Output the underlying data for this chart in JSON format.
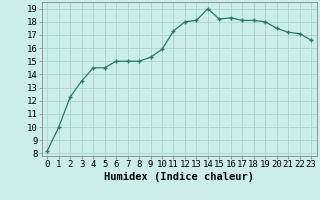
{
  "x": [
    0,
    1,
    2,
    3,
    4,
    5,
    6,
    7,
    8,
    9,
    10,
    11,
    12,
    13,
    14,
    15,
    16,
    17,
    18,
    19,
    20,
    21,
    22,
    23
  ],
  "y": [
    8.2,
    10.0,
    12.3,
    13.5,
    14.5,
    14.5,
    15.0,
    15.0,
    15.0,
    15.3,
    15.9,
    17.3,
    18.0,
    18.1,
    19.0,
    18.2,
    18.3,
    18.1,
    18.1,
    18.0,
    17.5,
    17.2,
    17.1,
    16.6
  ],
  "line_color": "#2a7a6a",
  "marker": "+",
  "marker_size": 3.5,
  "bg_color": "#cceee8",
  "grid_color": "#aad4cc",
  "xlabel": "Humidex (Indice chaleur)",
  "ylabel_ticks": [
    8,
    9,
    10,
    11,
    12,
    13,
    14,
    15,
    16,
    17,
    18,
    19
  ],
  "xlim": [
    -0.5,
    23.5
  ],
  "ylim": [
    7.8,
    19.5
  ],
  "xticks": [
    0,
    1,
    2,
    3,
    4,
    5,
    6,
    7,
    8,
    9,
    10,
    11,
    12,
    13,
    14,
    15,
    16,
    17,
    18,
    19,
    20,
    21,
    22,
    23
  ],
  "xlabel_fontsize": 7.5,
  "tick_fontsize": 6.5,
  "marker_color": "#2a7a6a"
}
